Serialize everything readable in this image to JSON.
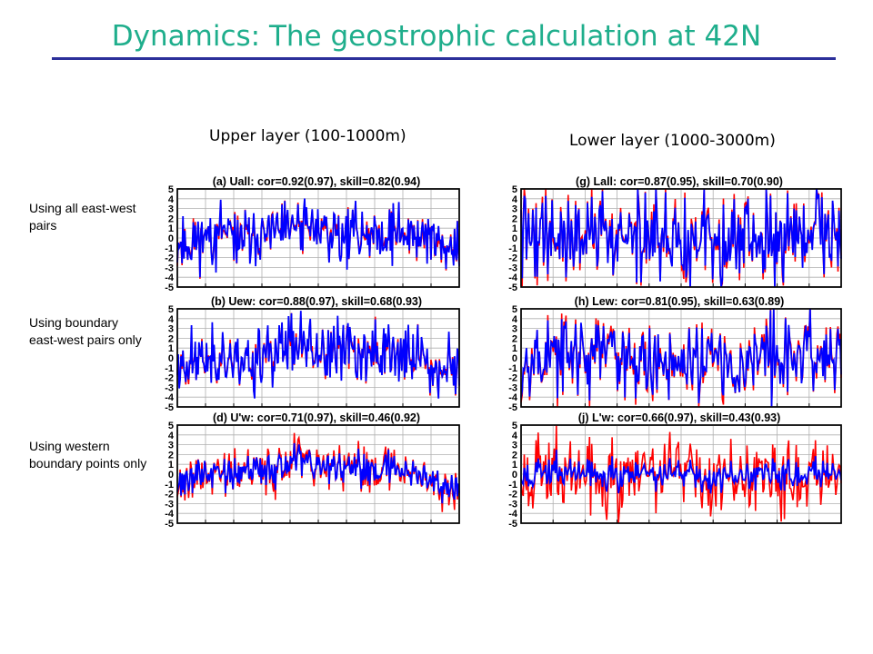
{
  "slide": {
    "title": "Dynamics: The geostrophic calculation at 42N",
    "col_headers": [
      "Upper layer (100-1000m)",
      "Lower layer (1000-3000m)"
    ],
    "row_labels": [
      "Using all east-west pairs",
      "Using boundary east-west pairs only",
      "Using western boundary points only"
    ]
  },
  "colors": {
    "title": "#1fae8c",
    "rule": "#2b2f9a",
    "observed": "#ff0000",
    "geostrophic": "#0000ff"
  },
  "chart_data": [
    {
      "type": "line",
      "title": "(a) Uall: cor=0.92(0.97), skill=0.82(0.94)",
      "ylim": [
        -5,
        5
      ],
      "yticks": [
        5,
        4,
        3,
        2,
        1,
        0,
        -1,
        -2,
        -3,
        -4,
        -5
      ],
      "grid": true,
      "note": "upper all pairs"
    },
    {
      "type": "line",
      "title": "(b) Uew: cor=0.88(0.97), skill=0.68(0.93)",
      "ylim": [
        -5,
        5
      ],
      "yticks": [
        5,
        4,
        3,
        2,
        1,
        0,
        -1,
        -2,
        -3,
        -4,
        -5
      ],
      "grid": true,
      "note": "upper boundary pairs"
    },
    {
      "type": "line",
      "title": "(d) U'w: cor=0.71(0.97), skill=0.46(0.92)",
      "ylim": [
        -5,
        5
      ],
      "yticks": [
        5,
        4,
        3,
        2,
        1,
        0,
        -1,
        -2,
        -3,
        -4,
        -5
      ],
      "grid": true,
      "note": "upper western boundary"
    },
    {
      "type": "line",
      "title": "(g) Lall: cor=0.87(0.95), skill=0.70(0.90)",
      "ylim": [
        -5,
        5
      ],
      "yticks": [
        5,
        4,
        3,
        2,
        1,
        0,
        -1,
        -2,
        -3,
        -4,
        -5
      ],
      "grid": true,
      "note": "lower all pairs"
    },
    {
      "type": "line",
      "title": "(h) Lew: cor=0.81(0.95), skill=0.63(0.89)",
      "ylim": [
        -5,
        5
      ],
      "yticks": [
        5,
        4,
        3,
        2,
        1,
        0,
        -1,
        -2,
        -3,
        -4,
        -5
      ],
      "grid": true,
      "note": "lower boundary pairs"
    },
    {
      "type": "line",
      "title": "(j) L'w: cor=0.66(0.97), skill=0.43(0.93)",
      "ylim": [
        -5,
        5
      ],
      "yticks": [
        5,
        4,
        3,
        2,
        1,
        0,
        -1,
        -2,
        -3,
        -4,
        -5
      ],
      "grid": true,
      "note": "lower western boundary"
    }
  ]
}
